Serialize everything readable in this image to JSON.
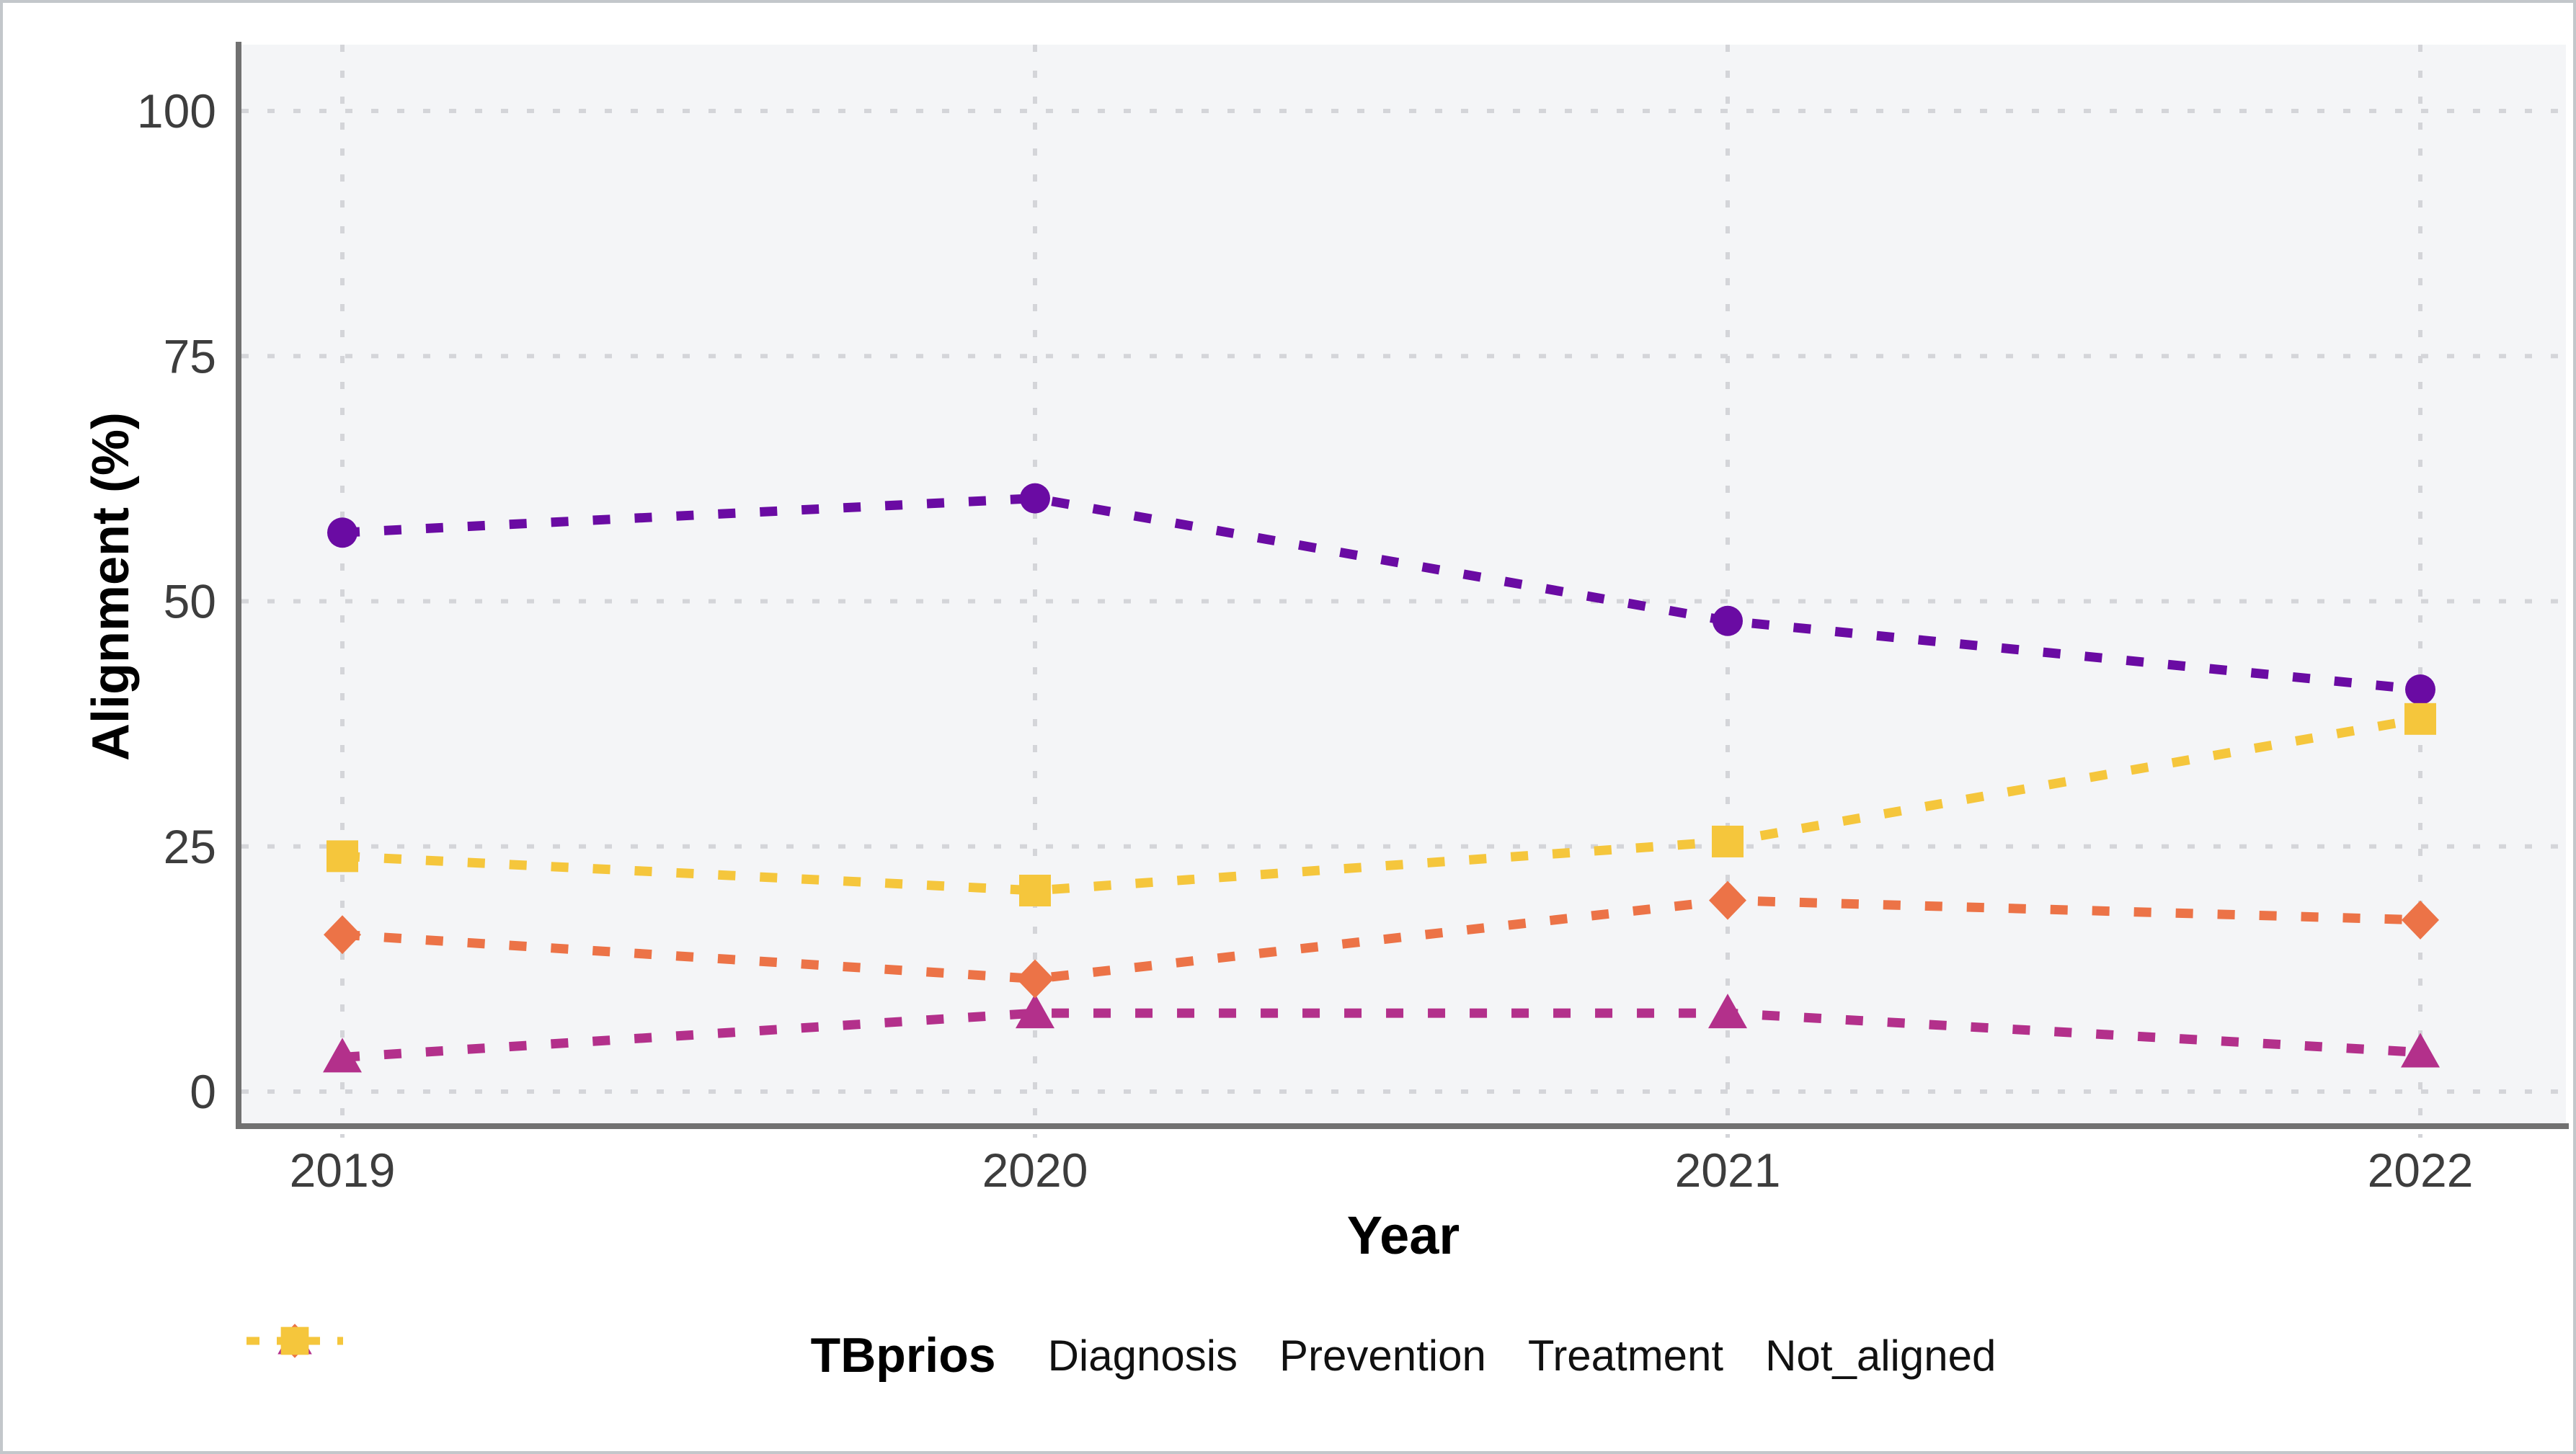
{
  "figure": {
    "background": "#ffffff",
    "border_color": "#c3c7cb",
    "panel_background": "#f4f5f7",
    "gridline_color": "#d4d5d9",
    "axis_line_color": "#717171",
    "tick_text_color": "#3d3d3d"
  },
  "chart_data": {
    "type": "line",
    "line_style": "dotted",
    "title": "",
    "xlabel": "Year",
    "ylabel": "Alignment (%)",
    "categories": [
      "2019",
      "2020",
      "2021",
      "2022"
    ],
    "y_ticks": [
      0,
      25,
      50,
      75,
      100
    ],
    "ylim": [
      0,
      100
    ],
    "grid": "dotted-major",
    "legend_title": "TBprios",
    "legend_position": "bottom",
    "series": [
      {
        "name": "Diagnosis",
        "marker": "circle",
        "color": "#6a0ba3",
        "values": [
          57,
          60.5,
          48,
          41
        ]
      },
      {
        "name": "Prevention",
        "marker": "triangle",
        "color": "#b3308b",
        "values": [
          3.5,
          8,
          8,
          4
        ]
      },
      {
        "name": "Treatment",
        "marker": "diamond",
        "color": "#ec7347",
        "values": [
          16,
          11.5,
          19.5,
          17.5
        ]
      },
      {
        "name": "Not_aligned",
        "marker": "square",
        "color": "#f5c63c",
        "values": [
          24,
          20.5,
          25.5,
          38
        ]
      }
    ]
  }
}
